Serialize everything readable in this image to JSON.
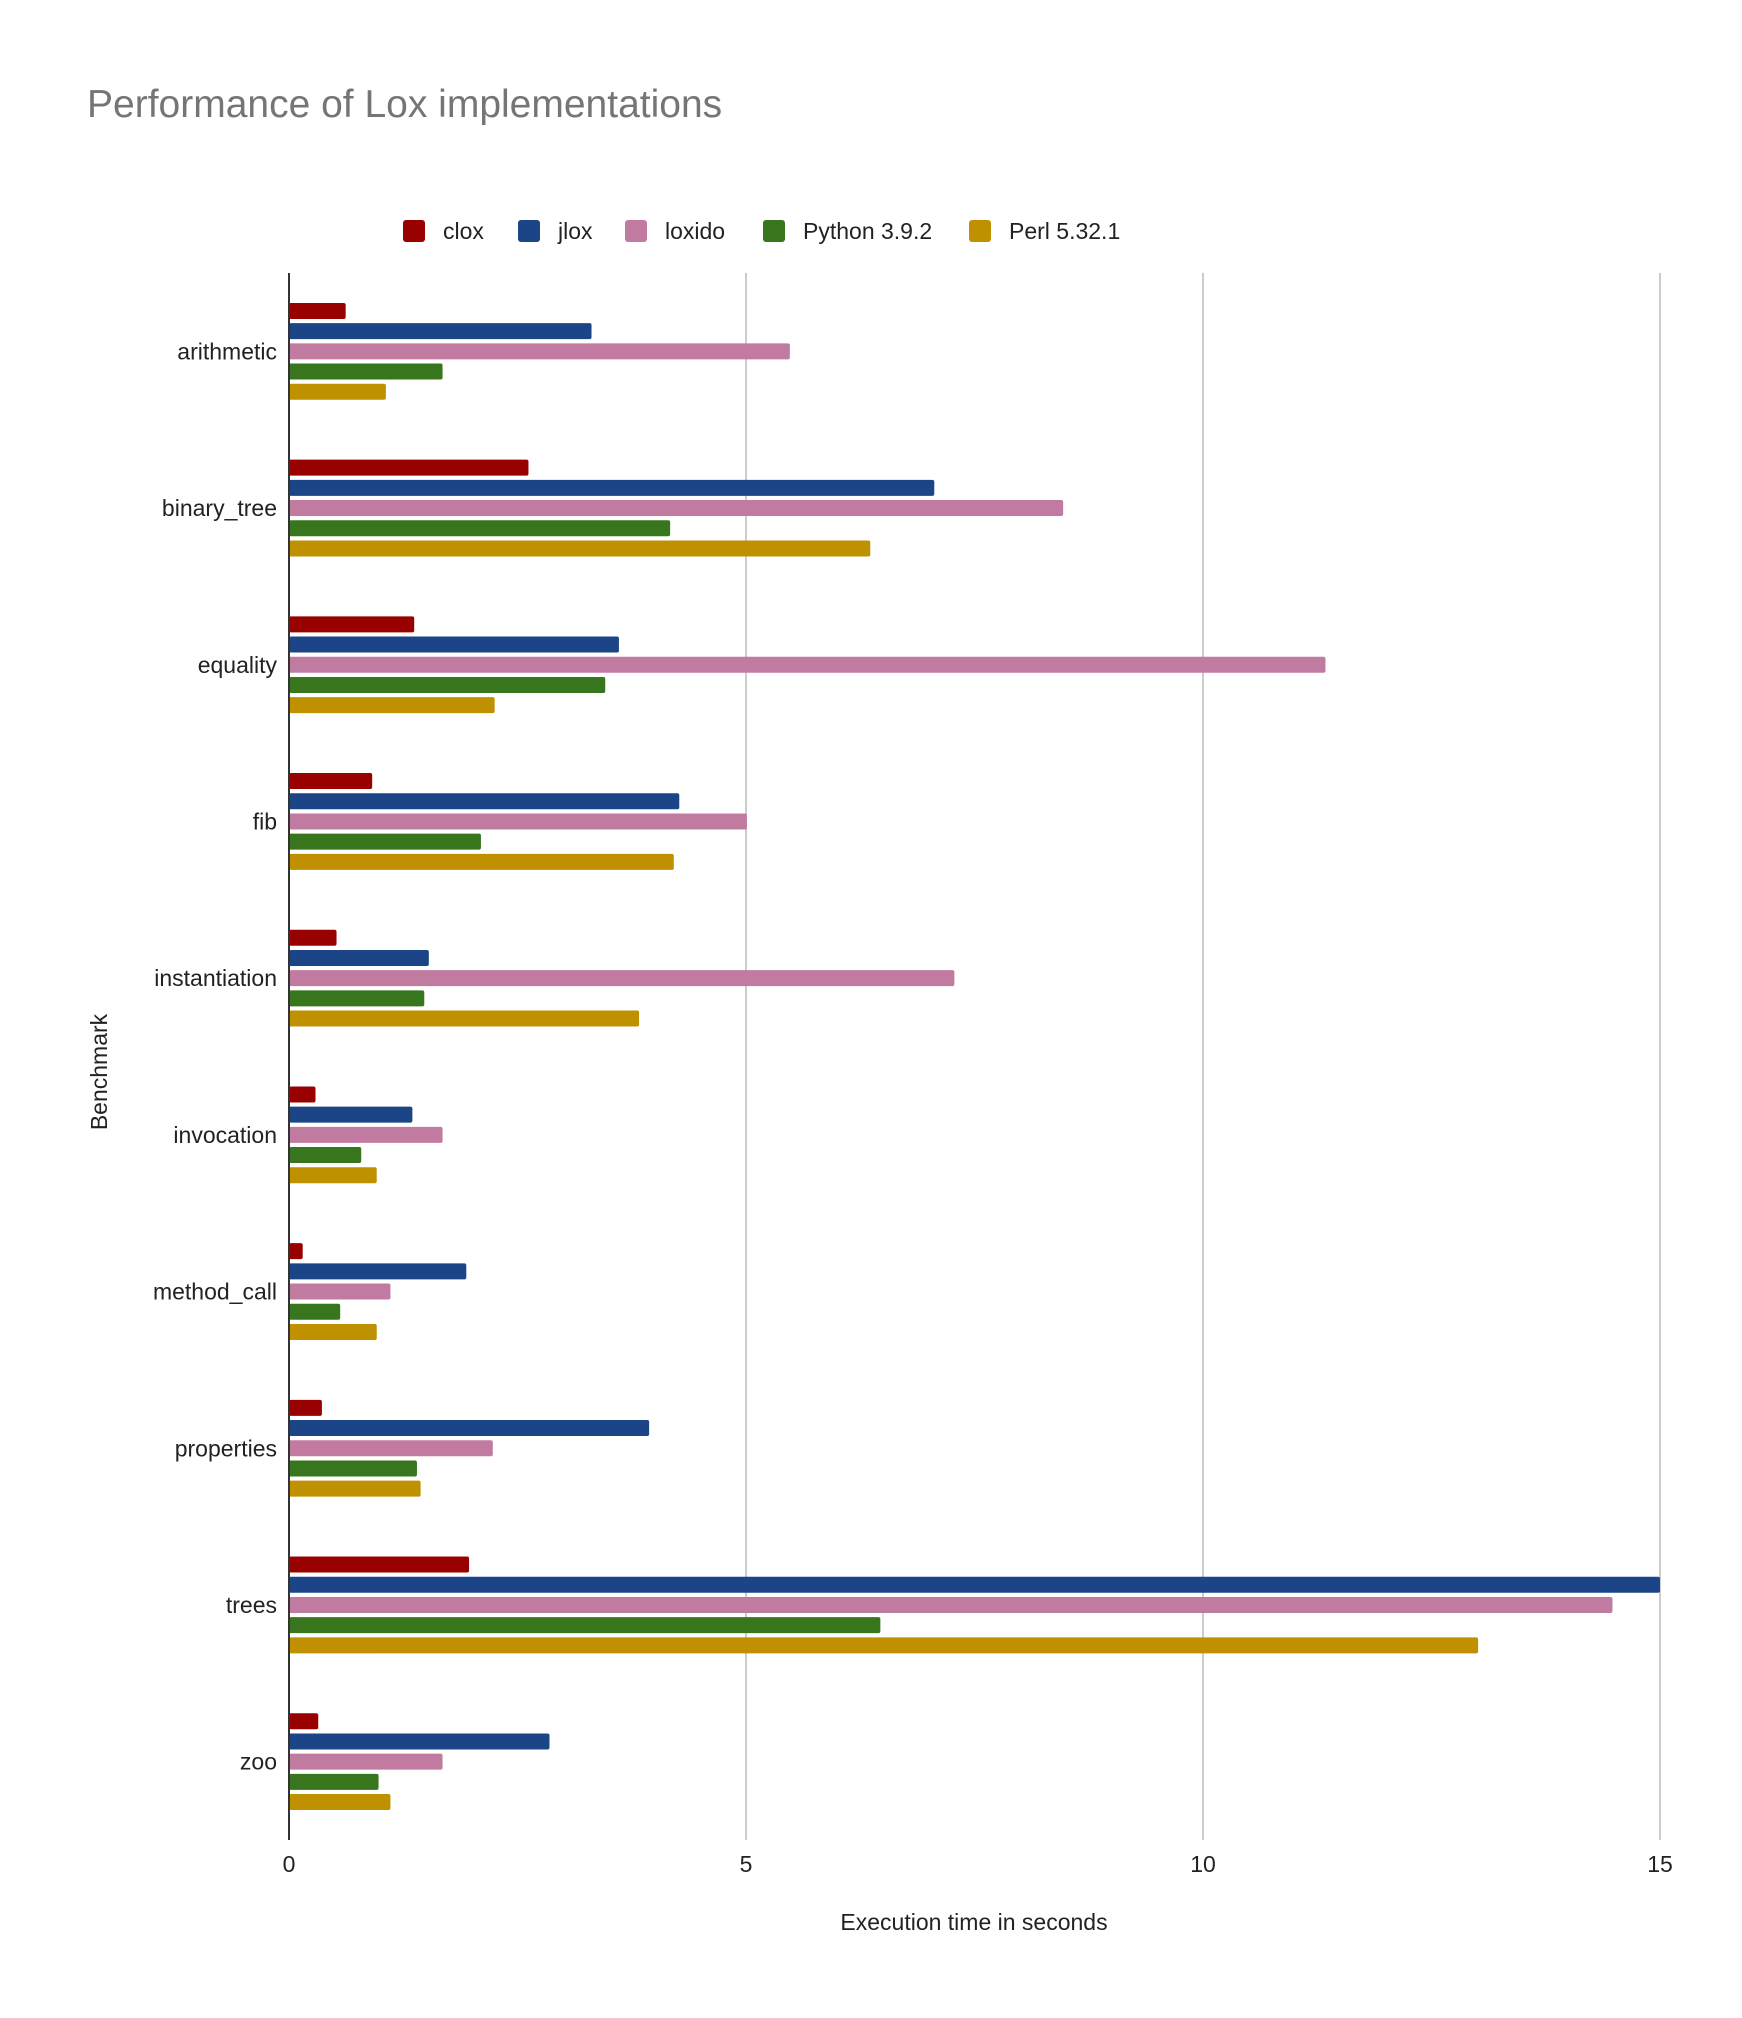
{
  "chart_data": {
    "type": "bar",
    "orientation": "horizontal",
    "title": "Performance of Lox implementations",
    "xlabel": "Execution time in seconds",
    "ylabel": "Benchmark",
    "xlim": [
      0,
      15
    ],
    "xticks": [
      0,
      5,
      10,
      15
    ],
    "grid": true,
    "legend_position": "top",
    "categories": [
      "arithmetic",
      "binary_tree",
      "equality",
      "fib",
      "instantiation",
      "invocation",
      "method_call",
      "properties",
      "trees",
      "zoo"
    ],
    "series": [
      {
        "name": "clox",
        "color": "#990000",
        "values": [
          0.62,
          2.62,
          1.37,
          0.91,
          0.52,
          0.29,
          0.15,
          0.36,
          1.97,
          0.32
        ]
      },
      {
        "name": "jlox",
        "color": "#1c4587",
        "values": [
          3.31,
          7.06,
          3.61,
          4.27,
          1.53,
          1.35,
          1.94,
          3.94,
          15.0,
          2.85
        ]
      },
      {
        "name": "loxido",
        "color": "#c27ba0",
        "values": [
          5.48,
          8.47,
          11.34,
          5.01,
          7.28,
          1.68,
          1.11,
          2.23,
          14.48,
          1.68
        ]
      },
      {
        "name": "Python 3.9.2",
        "color": "#38761d",
        "values": [
          1.68,
          4.17,
          3.46,
          2.1,
          1.48,
          0.79,
          0.56,
          1.4,
          6.47,
          0.98
        ]
      },
      {
        "name": "Perl 5.32.1",
        "color": "#bf9000",
        "values": [
          1.06,
          6.36,
          2.25,
          4.21,
          3.83,
          0.96,
          0.96,
          1.44,
          13.01,
          1.11
        ]
      }
    ]
  }
}
